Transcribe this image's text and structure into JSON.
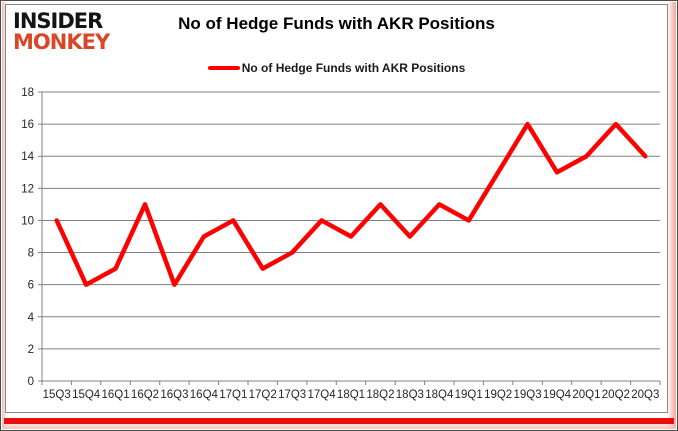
{
  "logo": {
    "line1": "INSIDER",
    "line2": "MONKEY"
  },
  "header": {
    "title": "No of Hedge Funds with AKR Positions"
  },
  "legend": {
    "label": "No of Hedge Funds with AKR Positions"
  },
  "colors": {
    "line": "#ff0000",
    "grid": "#808080",
    "axis_text": "#262626",
    "logo_black": "#141414",
    "logo_red": "#d9472b",
    "accent_bar": "#ea0f0f"
  },
  "chart_data": {
    "type": "line",
    "title": "No of Hedge Funds with AKR Positions",
    "categories": [
      "15Q3",
      "15Q4",
      "16Q1",
      "16Q2",
      "16Q3",
      "16Q4",
      "17Q1",
      "17Q2",
      "17Q3",
      "17Q4",
      "18Q1",
      "18Q2",
      "18Q3",
      "18Q4",
      "19Q1",
      "19Q2",
      "19Q3",
      "19Q4",
      "20Q1",
      "20Q2",
      "20Q3"
    ],
    "series": [
      {
        "name": "No of Hedge Funds with AKR Positions",
        "color": "#ff0000",
        "values": [
          10,
          6,
          7,
          11,
          6,
          9,
          10,
          7,
          8,
          10,
          9,
          11,
          9,
          11,
          10,
          13,
          16,
          13,
          14,
          16,
          14
        ]
      }
    ],
    "xlabel": "",
    "ylabel": "",
    "ylim": [
      0,
      18
    ],
    "ytick_step": 2,
    "grid": true,
    "legend_position": "top-center"
  }
}
